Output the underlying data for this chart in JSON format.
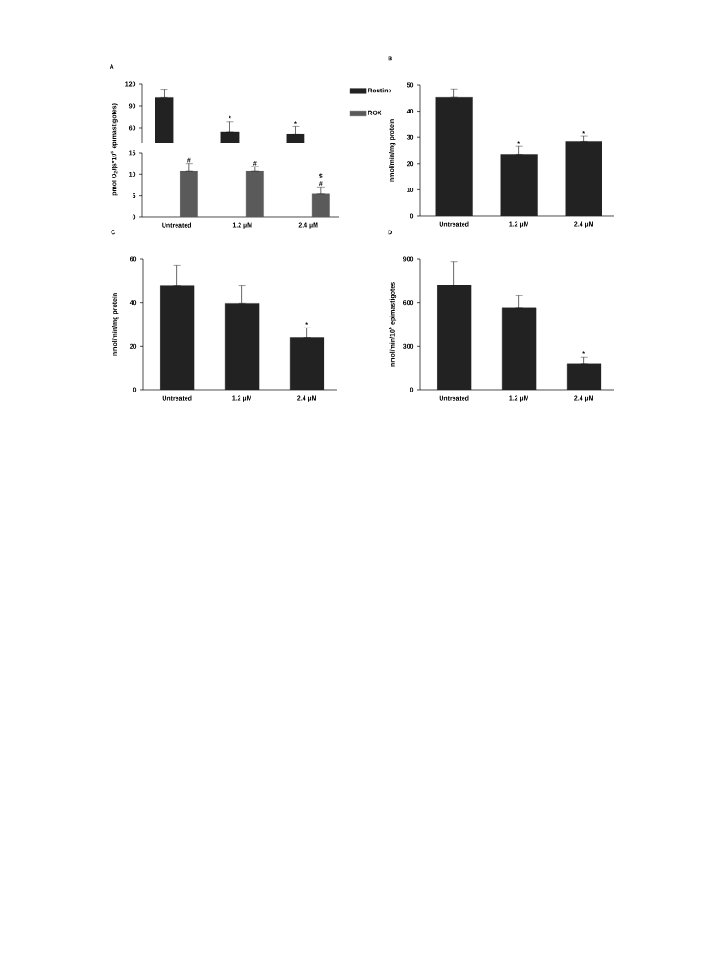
{
  "chart_data": [
    {
      "type": "bar",
      "title": "A",
      "categories": [
        null,
        null,
        null
      ],
      "series": [
        {
          "name": "Routine",
          "color": "#222222",
          "values": [
            102,
            55,
            52
          ],
          "errors": [
            [
              102,
              113
            ],
            [
              55,
              69
            ],
            [
              52,
              62
            ]
          ],
          "value_labels": [
            null,
            "*",
            "*"
          ]
        }
      ],
      "ylim": [
        40,
        120
      ],
      "yticks": [
        60,
        90,
        120
      ],
      "legend": "top right",
      "tick_labels": "y"
    },
    {
      "type": "bar",
      "ylabel": "pmol O$_{2}$/(s*10$^{6}$ epimastigotes)",
      "categories": [
        "Untreated",
        "1.2 µM",
        "2.4 µM"
      ],
      "series": [
        {
          "name": "ROX",
          "color": "#5a5a5a",
          "values": [
            10.7,
            10.7,
            5.4
          ],
          "errors": [
            [
              10.7,
              12.5
            ],
            [
              10.7,
              11.8
            ],
            [
              5.4,
              7.0
            ]
          ],
          "value_labels": [
            "#",
            "#",
            "#"
          ]
        }
      ],
      "ylim": [
        0,
        15
      ],
      "yticks": [
        0,
        5,
        10,
        15
      ],
      "legend": "top right",
      "annotations": [
        "$"
      ]
    },
    {
      "type": "bar",
      "title": "B",
      "ylabel": "nmol/min/mg protein",
      "categories": [
        "Untreated",
        "1.2 µM",
        "2.4 µM"
      ],
      "series": [
        {
          "color": "#222222",
          "values": [
            45.4,
            23.6,
            28.5
          ],
          "errors": [
            [
              45.4,
              48.5
            ],
            [
              23.6,
              26.5
            ],
            [
              28.5,
              30.4
            ]
          ],
          "value_labels": [
            null,
            "*",
            "*"
          ]
        }
      ],
      "ylim": [
        0,
        50
      ],
      "yticks": [
        0,
        10,
        20,
        30,
        40,
        50
      ]
    },
    {
      "type": "bar",
      "title": "C",
      "ylabel": "nmol/min/mg protein",
      "categories": [
        "Untreated",
        "1.2 µM",
        "2.4 µM"
      ],
      "series": [
        {
          "color": "#222222",
          "values": [
            47.6,
            39.7,
            24.1
          ],
          "errors": [
            [
              47.6,
              56.9
            ],
            [
              39.7,
              47.6
            ],
            [
              24.1,
              28.4
            ]
          ],
          "value_labels": [
            null,
            null,
            "*"
          ]
        }
      ],
      "ylim": [
        0,
        60
      ],
      "yticks": [
        0,
        20,
        40,
        60
      ]
    },
    {
      "type": "bar",
      "title": "D",
      "ylabel": "nmol/min/10$^{6}$ epimastigotes",
      "categories": [
        "Untreated",
        "1.2 µM",
        "2.4 µM"
      ],
      "series": [
        {
          "color": "#222222",
          "values": [
            719,
            561,
            177
          ],
          "errors": [
            [
              719,
              883
            ],
            [
              561,
              646
            ],
            [
              177,
              225
            ]
          ],
          "value_labels": [
            null,
            null,
            "*"
          ]
        }
      ],
      "ylim": [
        0,
        900
      ],
      "yticks": [
        0,
        300,
        600,
        900
      ]
    }
  ]
}
